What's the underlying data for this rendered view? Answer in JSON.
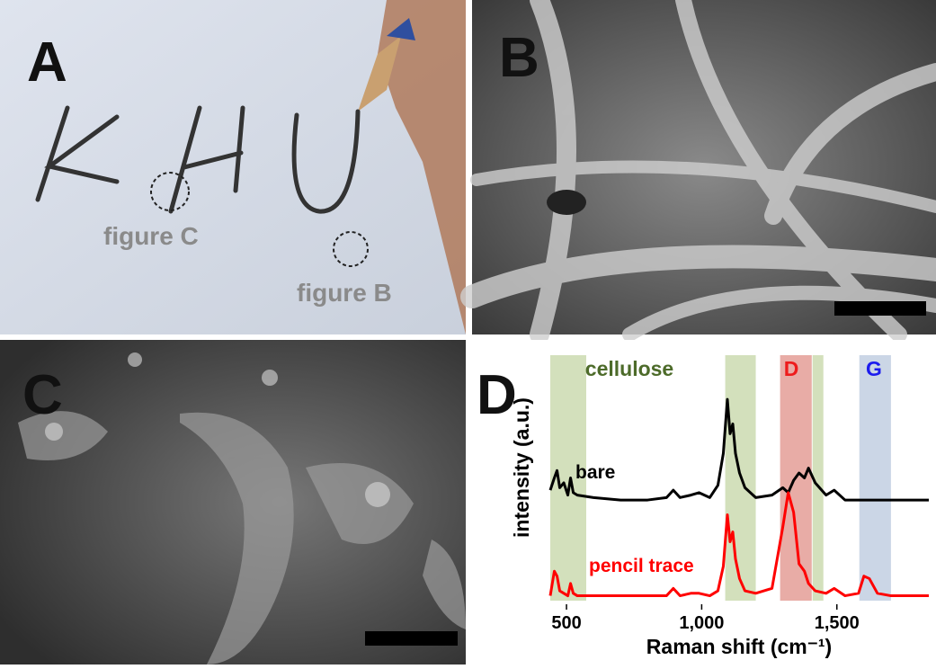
{
  "panels": [
    {
      "label": "A",
      "annotations": [
        "figure C",
        "figure B"
      ]
    },
    {
      "label": "B"
    },
    {
      "label": "C"
    }
  ],
  "chart_data": {
    "type": "line",
    "panel_label": "D",
    "xlabel": "Raman shift (cm⁻¹)",
    "ylabel": "intensity (a.u.)",
    "xlim": [
      440,
      1840
    ],
    "ylim": [
      0,
      100
    ],
    "xticks": [
      500,
      {
        "value": 1000,
        "label": "1,000"
      },
      {
        "value": 1500,
        "label": "1,500"
      }
    ],
    "bands": [
      {
        "name": "cellulose",
        "color": "#d3e0bc",
        "text_color": "#4d6b2a",
        "ranges": [
          [
            440,
            573
          ],
          [
            1087,
            1200
          ],
          [
            1410,
            1450
          ]
        ]
      },
      {
        "name": "D",
        "color": "#e8aca6",
        "text_color": "#ee1c1c",
        "ranges": [
          [
            1290,
            1407
          ]
        ]
      },
      {
        "name": "G",
        "color": "#cbd6e6",
        "text_color": "#1c1cee",
        "ranges": [
          [
            1583,
            1700
          ]
        ]
      }
    ],
    "x": [
      440,
      455,
      465,
      475,
      490,
      505,
      515,
      525,
      540,
      600,
      700,
      800,
      870,
      895,
      920,
      960,
      990,
      1030,
      1060,
      1080,
      1095,
      1105,
      1115,
      1125,
      1140,
      1160,
      1200,
      1260,
      1300,
      1320,
      1340,
      1360,
      1380,
      1395,
      1420,
      1460,
      1490,
      1530,
      1580,
      1600,
      1620,
      1650,
      1700,
      1840
    ],
    "series": [
      {
        "name": "bare",
        "color": "#000000",
        "values": [
          45,
          50,
          53,
          46,
          48,
          43,
          50,
          44,
          43,
          42,
          41,
          41,
          42,
          45,
          42,
          43,
          44,
          42,
          47,
          60,
          82,
          68,
          72,
          60,
          52,
          46,
          42,
          43,
          46,
          44,
          49,
          52,
          50,
          54,
          48,
          43,
          45,
          41,
          41,
          41,
          41,
          41,
          41,
          41
        ]
      },
      {
        "name": "pencil trace",
        "color": "#ff0000",
        "values": [
          2,
          12,
          10,
          4,
          3,
          2,
          7,
          3,
          2,
          2,
          2,
          2,
          2,
          5,
          2,
          3,
          3,
          2,
          4,
          14,
          35,
          24,
          28,
          17,
          9,
          4,
          3,
          5,
          30,
          44,
          36,
          15,
          12,
          7,
          4,
          3,
          5,
          2,
          3,
          10,
          9,
          3,
          2,
          2
        ]
      }
    ]
  }
}
